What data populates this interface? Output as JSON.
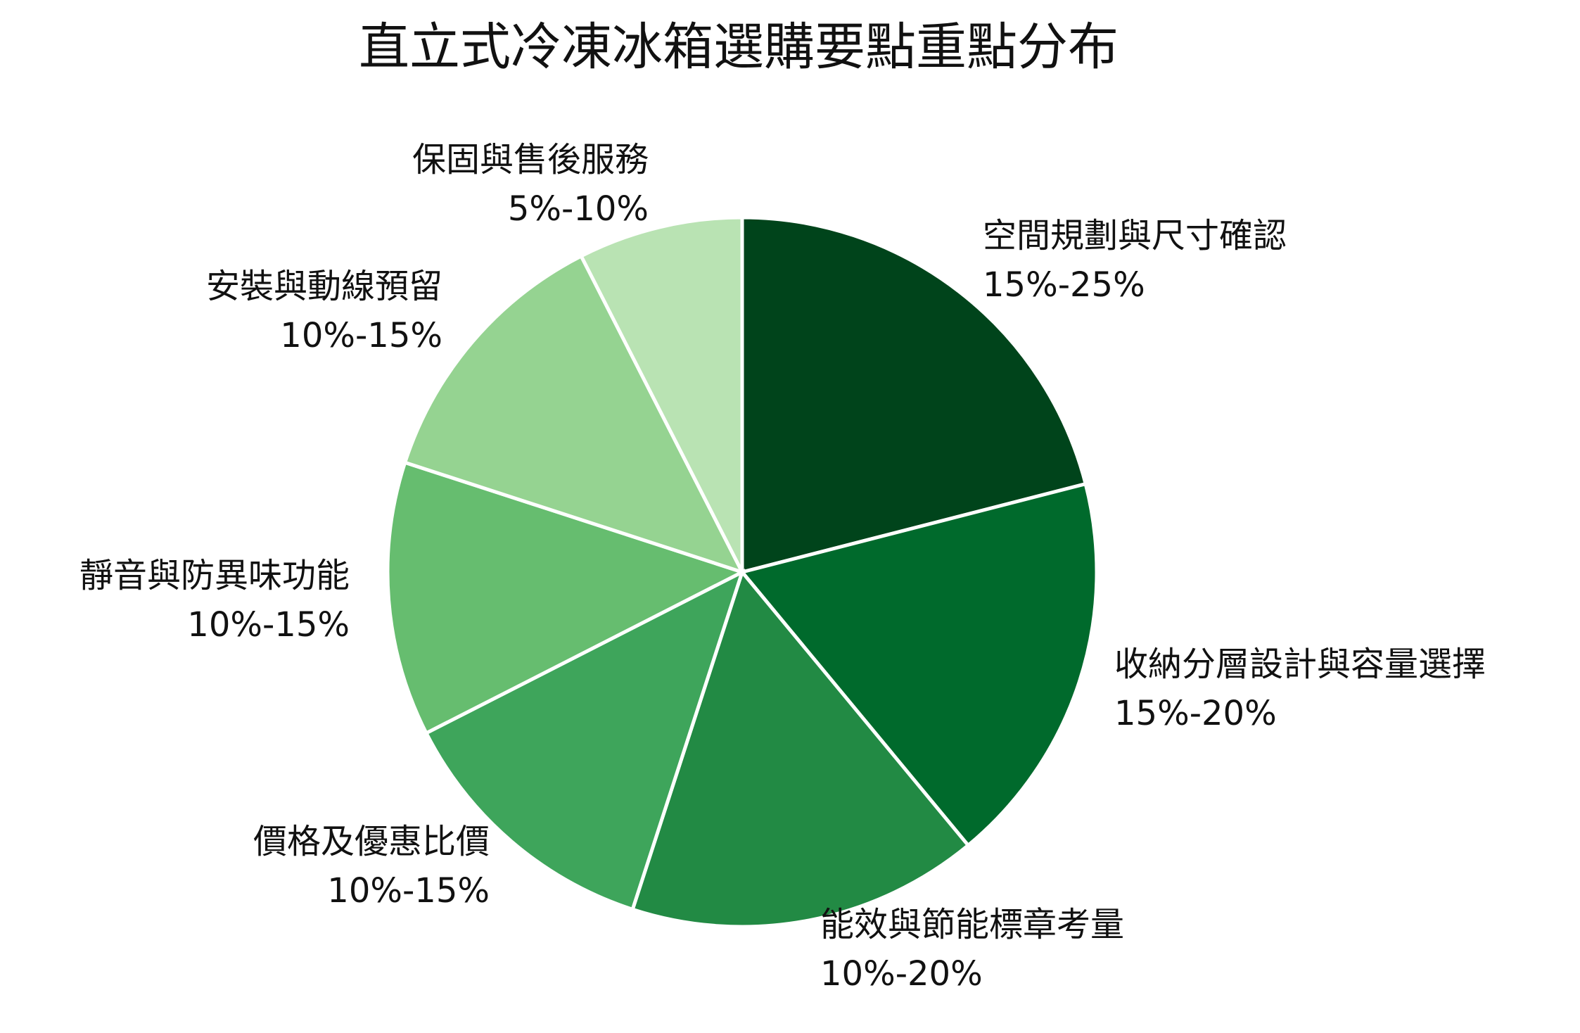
{
  "chart_data": {
    "type": "pie",
    "title": "直立式冷凍冰箱選購要點重點分布",
    "categories": [
      "空間規劃與尺寸確認",
      "收納分層設計與容量選擇",
      "能效與節能標章考量",
      "價格及優惠比價",
      "靜音與防異味功能",
      "安裝與動線預留",
      "保固與售後服務"
    ],
    "values": [
      21,
      18,
      16,
      12.5,
      12.5,
      12.5,
      7.5
    ],
    "range_labels": [
      "15%-25%",
      "15%-20%",
      "10%-20%",
      "10%-15%",
      "10%-15%",
      "10%-15%",
      "5%-10%"
    ],
    "colors": [
      "#00441b",
      "#006a2c",
      "#228a44",
      "#3ea55b",
      "#66bd6f",
      "#95d391",
      "#b9e3b3"
    ]
  }
}
